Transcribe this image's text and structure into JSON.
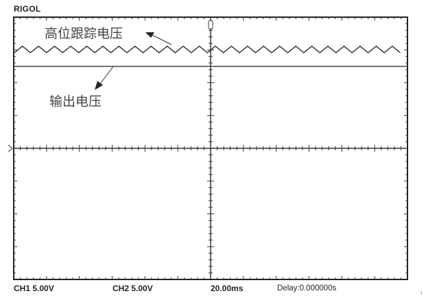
{
  "brand": "RIGOL",
  "status": {
    "ch1": "CH1  5.00V",
    "ch2": "CH2  5.00V",
    "timebase": "20.00ms",
    "delay": "Delay:0.000000s"
  },
  "chart_data": {
    "type": "line",
    "title": "",
    "grid": {
      "divisions_x": 12,
      "divisions_y": 8,
      "minor_ticks_per_division": 5
    },
    "series": [
      {
        "shape": "triangle",
        "level_div_from_top": 0.9,
        "peak_to_peak_div": 0.2,
        "period_div": 0.49,
        "color": "#222222"
      },
      {
        "shape": "flat",
        "level_div_from_top": 1.5,
        "color": "#444444"
      }
    ],
    "annotations": [
      {
        "text": "高位跟踪电压",
        "target": "series-1"
      },
      {
        "text": "输出电压",
        "target": "series-2"
      }
    ],
    "markers": {
      "trigger_position": "center",
      "ground_marker": "left-center"
    }
  }
}
